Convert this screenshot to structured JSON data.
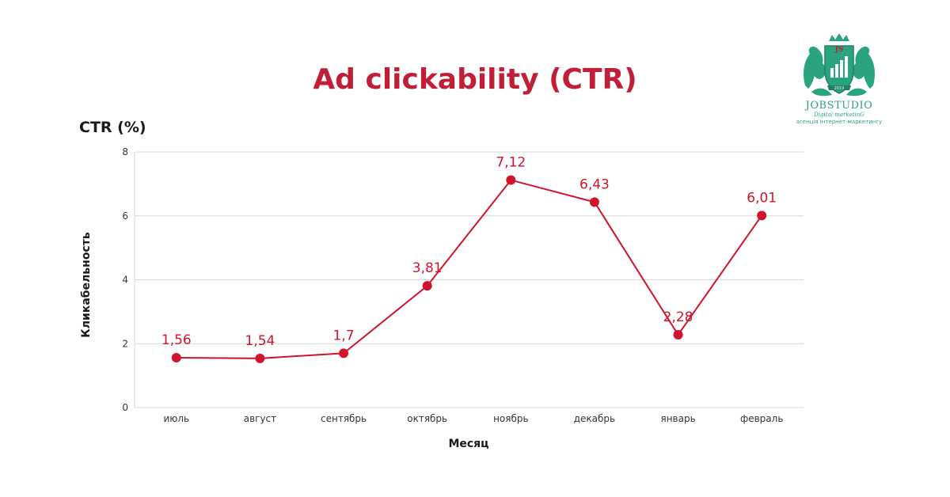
{
  "logo": {
    "name": "JOBSTUDIO",
    "tagline": "Digital marketinG",
    "subtitle": "агенція інтернет-маркетингу",
    "badge_letters": "JS",
    "year": "2019",
    "colors": {
      "primary": "#2aa37f",
      "accent": "#c01f37"
    }
  },
  "chart_data": {
    "type": "line",
    "title": "Ad clickability (CTR)",
    "subtitle": "CTR (%)",
    "xlabel": "Месяц",
    "ylabel": "Кликабельность",
    "categories": [
      "июль",
      "август",
      "сентябрь",
      "октябрь",
      "ноябрь",
      "декабрь",
      "январь",
      "февраль"
    ],
    "series": [
      {
        "values": [
          1.56,
          1.54,
          1.7,
          3.81,
          7.12,
          6.43,
          2.28,
          6.01
        ],
        "data_labels": [
          "1,56",
          "1,54",
          "1,7",
          "3,81",
          "7,12",
          "6,43",
          "2,28",
          "6,01"
        ]
      }
    ],
    "ylim": [
      0,
      8
    ],
    "yticks": [
      0,
      2,
      4,
      6,
      8
    ],
    "grid": true,
    "colors": {
      "line": "#d0142c",
      "title": "#c01f37",
      "grid": "#d9d9d9",
      "axis_text": "#333333"
    }
  }
}
